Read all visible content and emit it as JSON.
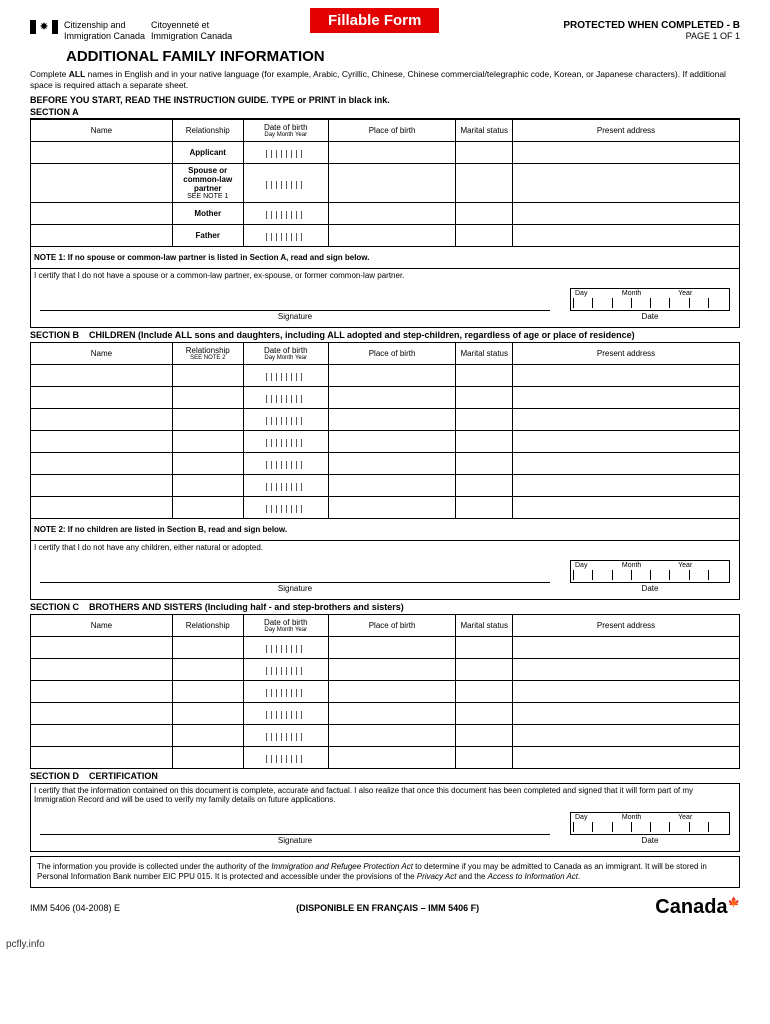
{
  "badge": "Fillable Form",
  "dept_en1": "Citizenship and",
  "dept_en2": "Immigration Canada",
  "dept_fr1": "Citoyenneté et",
  "dept_fr2": "Immigration Canada",
  "protected": "PROTECTED WHEN COMPLETED - B",
  "page_num": "PAGE 1 OF 1",
  "title": "ADDITIONAL FAMILY INFORMATION",
  "instr1": "Complete ",
  "instr_all": "ALL",
  "instr2": " names in English and in your native language (for example, Arabic, Cyrillic, Chinese, Chinese commercial/telegraphic code, Korean, or Japanese characters). If additional space is required attach a separate sheet.",
  "pre_start": "BEFORE YOU START, READ THE INSTRUCTION GUIDE. TYPE or PRINT in black ink.",
  "sec_a": "SECTION A",
  "cols": {
    "name": "Name",
    "rel": "Relationship",
    "dob": "Date of birth",
    "dob_sub": "Day  Month   Year",
    "pob": "Place of birth",
    "marital": "Marital status",
    "addr": "Present address"
  },
  "rel_b_sub": "SEE NOTE 2",
  "rows_a": [
    {
      "rel": "Applicant"
    },
    {
      "rel": "Spouse or common-law partner",
      "sub": "SEE NOTE 1"
    },
    {
      "rel": "Mother"
    },
    {
      "rel": "Father"
    }
  ],
  "note1": "NOTE 1: If no spouse or common-law partner is listed in Section A, read and sign below.",
  "cert_a": "I certify that I do not have a spouse or a common-law partner, ex-spouse, or former common-law partner.",
  "sig_label": "Signature",
  "date_label": "Date",
  "date_parts": [
    "Day",
    "Month",
    "Year"
  ],
  "sec_b_label": "SECTION B",
  "sec_b_desc": "CHILDREN (Include ALL sons and daughters, including ALL adopted and step-children, regardless of age or place of residence)",
  "rows_b_count": 7,
  "note2": "NOTE 2: If no children are listed in Section B, read and sign below.",
  "cert_b": "I certify that I do not have any children, either natural or adopted.",
  "sec_c_label": "SECTION C",
  "sec_c_desc": "BROTHERS AND SISTERS (Including half - and step-brothers and sisters)",
  "rows_c_count": 6,
  "sec_d_label": "SECTION D",
  "sec_d_desc": "CERTIFICATION",
  "cert_d": "I certify that the information contained on this document is complete, accurate and factual. I also realize that once this document has been completed and signed that it will form part of my Immigration Record and will be used to verify my family details on future applications.",
  "privacy1": "The information you provide is collected under the authority of the ",
  "privacy_act1": "Immigration and Refugee Protection Act",
  "privacy2": " to determine if you may be admitted to Canada as an immigrant. It will be stored in Personal Information Bank number EIC PPU 015. It is protected and accessible under the provisions of the ",
  "privacy_act2": "Privacy Act",
  "privacy3": " and the ",
  "privacy_act3": "Access to Information Act",
  "privacy4": ".",
  "form_num": "IMM 5406 (04-2008) E",
  "disponible": "(DISPONIBLE EN FRANÇAIS – IMM 5406 F)",
  "canada": "Canada",
  "watermark": "pcfly.info"
}
